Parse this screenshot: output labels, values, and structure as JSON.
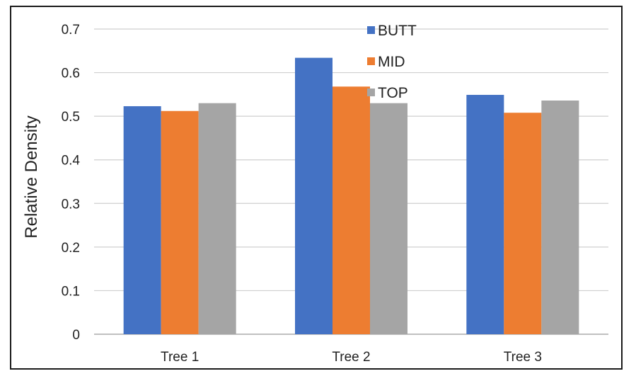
{
  "chart_data": {
    "type": "bar",
    "title": "",
    "xlabel": "",
    "ylabel": "Relative Density",
    "ylim": [
      0,
      0.7
    ],
    "yticks": [
      "0",
      "0.1",
      "0.2",
      "0.3",
      "0.4",
      "0.5",
      "0.6",
      "0.7"
    ],
    "categories": [
      "Tree 1",
      "Tree 2",
      "Tree 3"
    ],
    "series": [
      {
        "name": "BUTT",
        "color": "#4472C4",
        "values": [
          0.523,
          0.634,
          0.549
        ]
      },
      {
        "name": "MID",
        "color": "#ED7D31",
        "values": [
          0.512,
          0.568,
          0.508
        ]
      },
      {
        "name": "TOP",
        "color": "#A5A5A5",
        "values": [
          0.53,
          0.53,
          0.536
        ]
      }
    ],
    "grid": true,
    "legend_position": "top-center"
  }
}
